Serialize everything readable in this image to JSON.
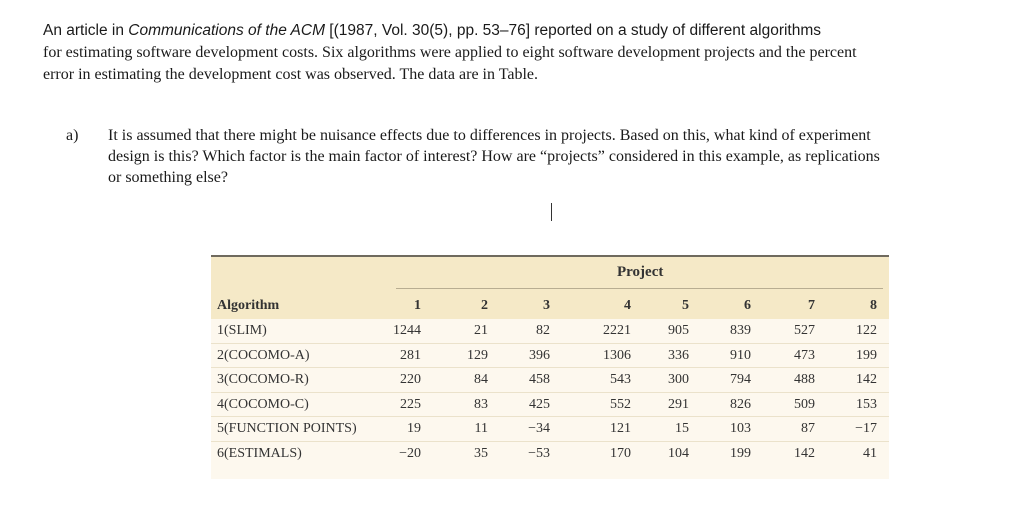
{
  "intro": {
    "line1_prefix": "An article in ",
    "journal": "Communications of the ACM",
    "line1_suffix": " [(1987, Vol. 30(5), pp. 53–76] reported on a study of different algorithms",
    "line2": "for estimating software development costs. Six algorithms were applied to eight software development projects and the percent",
    "line3": "error in estimating the development cost was observed. The data are in Table."
  },
  "question": {
    "marker": "a)",
    "line1": "It is assumed that there might be nuisance effects due to differences in projects. Based on this, what kind of experiment",
    "line2": "design is this? Which factor is the main factor of interest? How are “projects” considered in this example, as replications",
    "line3": "or something else?"
  },
  "table": {
    "group_header": "Project",
    "row_header": "Algorithm",
    "columns": [
      "1",
      "2",
      "3",
      "4",
      "5",
      "6",
      "7",
      "8"
    ],
    "rows": [
      {
        "algorithm": "1(SLIM)",
        "values": [
          "1244",
          "21",
          "82",
          "2221",
          "905",
          "839",
          "527",
          "122"
        ]
      },
      {
        "algorithm": "2(COCOMO-A)",
        "values": [
          "281",
          "129",
          "396",
          "1306",
          "336",
          "910",
          "473",
          "199"
        ]
      },
      {
        "algorithm": "3(COCOMO-R)",
        "values": [
          "220",
          "84",
          "458",
          "543",
          "300",
          "794",
          "488",
          "142"
        ]
      },
      {
        "algorithm": "4(COCOMO-C)",
        "values": [
          "225",
          "83",
          "425",
          "552",
          "291",
          "826",
          "509",
          "153"
        ]
      },
      {
        "algorithm": "5(FUNCTION POINTS)",
        "values": [
          "19",
          "11",
          "−34",
          "121",
          "15",
          "103",
          "87",
          "−17"
        ]
      },
      {
        "algorithm": "6(ESTIMALS)",
        "values": [
          "−20",
          "35",
          "−53",
          "170",
          "104",
          "199",
          "142",
          "41"
        ]
      }
    ]
  }
}
